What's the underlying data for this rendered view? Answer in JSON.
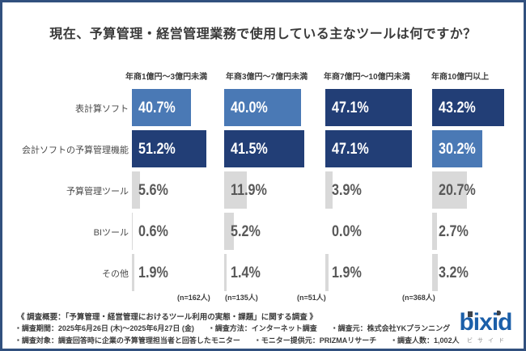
{
  "title": "現在、予算管理・経営管理業務で使用している主なツールは何ですか？",
  "chart_data": {
    "type": "bar",
    "orientation": "horizontal",
    "categories": [
      "表計算ソフト",
      "会計ソフトの予算管理機能",
      "予算管理ツール",
      "BIツール",
      "その他"
    ],
    "value_suffix": "%",
    "columns": [
      {
        "header": "年商1億円～3億円未満",
        "n_label": "(n=162人)",
        "values": [
          40.7,
          51.2,
          5.6,
          0.6,
          1.9
        ]
      },
      {
        "header": "年商3億円～7億円未満",
        "n_label": "(n=135人)",
        "values": [
          40.0,
          41.5,
          11.9,
          5.2,
          1.4
        ]
      },
      {
        "header": "年商7億円～10億円未満",
        "n_label": "(n=51人)",
        "values": [
          47.1,
          47.1,
          3.9,
          0.0,
          1.9
        ]
      },
      {
        "header": "年商10億円以上",
        "n_label": "(n=368人)",
        "values": [
          43.2,
          30.2,
          20.7,
          2.7,
          3.2
        ]
      }
    ],
    "colors": {
      "max_bar": "#223e76",
      "second_bar": "#4a79b5",
      "minor_bar": "#d9d9d9",
      "value_on_blue": "#ffffff",
      "value_on_minor": "#595959"
    },
    "legend": null,
    "notes": "each column's bars are scaled relative to that column's maximum value; the column maximum is dark navy, the other blue-series bar is medium blue, remaining categories are gray"
  },
  "footer": {
    "summary": "《 調査概要：「予算管理・経営管理におけるツール利用の実態・課題」に関する調査 》",
    "lines": [
      [
        "調査期間：2025年6月26日 (木)～2025年6月27日 (金)",
        "調査方法：インターネット調査",
        "調査元：株式会社YKプランニング"
      ],
      [
        "調査対象：調査回答時に企業の予算管理担当者と回答したモニター",
        "モニター提供元：PRIZMAリサーチ",
        "調査人数：1,002人"
      ]
    ]
  },
  "logo": {
    "text": "bixid",
    "subtext": "ビサイド",
    "color": "#1b5fa9"
  }
}
